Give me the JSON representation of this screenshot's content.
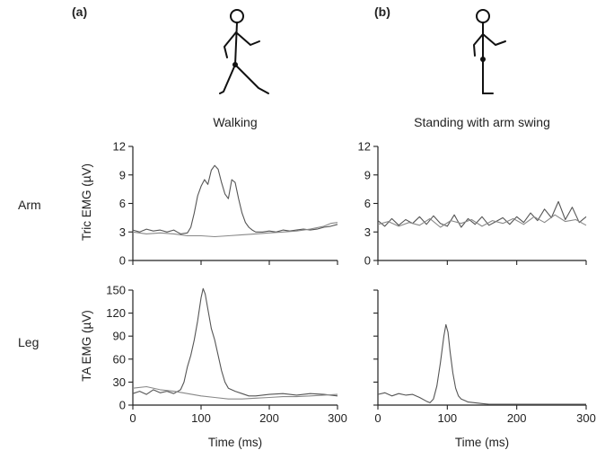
{
  "panels": {
    "a_label": "(a)",
    "b_label": "(b)",
    "a_title": "Walking",
    "b_title": "Standing with arm swing"
  },
  "rows": {
    "arm_label": "Arm",
    "leg_label": "Leg"
  },
  "icons": [
    "walking-figure-icon",
    "standing-figure-icon"
  ],
  "colors": {
    "trace_primary": "#555555",
    "trace_secondary": "#888888",
    "axis": "#222222"
  },
  "chart_data": [
    {
      "id": "walk-arm",
      "type": "line",
      "title": "",
      "xlabel": "",
      "ylabel": "Tric EMG (µV)",
      "xlim": [
        0,
        300
      ],
      "ylim": [
        0,
        12
      ],
      "xticks": [
        0,
        100,
        200,
        300
      ],
      "yticks": [
        0,
        3,
        6,
        9,
        12
      ],
      "show_xtick_labels": false,
      "series": [
        {
          "x": [
            0,
            10,
            20,
            30,
            40,
            50,
            60,
            65,
            70,
            80,
            85,
            90,
            95,
            100,
            105,
            110,
            115,
            120,
            125,
            130,
            135,
            140,
            145,
            150,
            155,
            160,
            165,
            170,
            175,
            180,
            190,
            200,
            210,
            220,
            230,
            240,
            250,
            260,
            270,
            280,
            290,
            300
          ],
          "y": [
            3.2,
            3.0,
            3.3,
            3.1,
            3.2,
            3.0,
            3.2,
            3.0,
            2.8,
            2.9,
            3.5,
            5.0,
            6.8,
            7.8,
            8.5,
            8.0,
            9.5,
            10.0,
            9.6,
            8.2,
            7.0,
            6.5,
            8.5,
            8.2,
            6.5,
            5.0,
            4.0,
            3.5,
            3.2,
            3.0,
            3.0,
            3.1,
            3.0,
            3.2,
            3.1,
            3.2,
            3.3,
            3.2,
            3.3,
            3.5,
            3.6,
            3.8
          ]
        },
        {
          "x": [
            0,
            20,
            40,
            60,
            70,
            80,
            100,
            120,
            140,
            160,
            180,
            200,
            220,
            240,
            260,
            280,
            290,
            300
          ],
          "y": [
            3.0,
            2.8,
            2.9,
            2.8,
            2.7,
            2.6,
            2.6,
            2.5,
            2.6,
            2.7,
            2.8,
            2.9,
            3.0,
            3.1,
            3.3,
            3.6,
            3.9,
            4.0
          ]
        }
      ]
    },
    {
      "id": "walk-leg",
      "type": "line",
      "title": "",
      "xlabel": "Time (ms)",
      "ylabel": "TA EMG (µV)",
      "xlim": [
        0,
        300
      ],
      "ylim": [
        0,
        150
      ],
      "xticks": [
        0,
        100,
        200,
        300
      ],
      "yticks": [
        0,
        30,
        60,
        90,
        120,
        150
      ],
      "show_xtick_labels": true,
      "series": [
        {
          "x": [
            0,
            10,
            20,
            30,
            40,
            50,
            60,
            70,
            75,
            80,
            85,
            90,
            95,
            100,
            103,
            106,
            110,
            115,
            120,
            125,
            130,
            135,
            140,
            150,
            160,
            170,
            180,
            200,
            220,
            240,
            260,
            280,
            300
          ],
          "y": [
            15,
            18,
            14,
            20,
            16,
            18,
            15,
            20,
            30,
            50,
            65,
            85,
            110,
            140,
            152,
            145,
            125,
            100,
            85,
            65,
            45,
            30,
            22,
            18,
            15,
            12,
            12,
            14,
            15,
            13,
            15,
            14,
            12
          ]
        },
        {
          "x": [
            0,
            20,
            40,
            60,
            80,
            100,
            120,
            140,
            160,
            180,
            200,
            220,
            240,
            260,
            280,
            300
          ],
          "y": [
            22,
            24,
            20,
            18,
            15,
            12,
            10,
            8,
            8,
            9,
            10,
            11,
            11,
            12,
            13,
            14
          ]
        }
      ]
    },
    {
      "id": "stand-arm",
      "type": "line",
      "title": "",
      "xlabel": "",
      "ylabel": "",
      "xlim": [
        0,
        300
      ],
      "ylim": [
        0,
        12
      ],
      "xticks": [
        0,
        100,
        200,
        300
      ],
      "yticks": [
        0,
        3,
        6,
        9,
        12
      ],
      "show_xtick_labels": false,
      "series": [
        {
          "x": [
            0,
            10,
            20,
            30,
            40,
            50,
            60,
            70,
            80,
            90,
            100,
            110,
            120,
            130,
            140,
            150,
            160,
            170,
            180,
            190,
            200,
            210,
            220,
            230,
            240,
            250,
            260,
            270,
            280,
            290,
            300
          ],
          "y": [
            4.2,
            3.6,
            4.4,
            3.7,
            4.3,
            3.9,
            4.6,
            3.8,
            4.7,
            3.9,
            3.6,
            4.8,
            3.5,
            4.4,
            3.8,
            4.6,
            3.7,
            4.1,
            4.5,
            3.8,
            4.6,
            4.0,
            5.0,
            4.2,
            5.4,
            4.5,
            6.2,
            4.3,
            5.6,
            4.0,
            4.6
          ]
        },
        {
          "x": [
            0,
            15,
            30,
            45,
            60,
            75,
            90,
            105,
            120,
            135,
            150,
            165,
            180,
            195,
            210,
            225,
            240,
            255,
            270,
            285,
            300
          ],
          "y": [
            3.8,
            4.1,
            3.6,
            4.0,
            3.7,
            4.4,
            3.5,
            4.2,
            3.9,
            4.3,
            3.6,
            4.2,
            3.9,
            4.4,
            3.8,
            4.6,
            4.0,
            4.8,
            4.1,
            4.3,
            3.7
          ]
        }
      ]
    },
    {
      "id": "stand-leg",
      "type": "line",
      "title": "",
      "xlabel": "Time (ms)",
      "ylabel": "",
      "xlim": [
        0,
        300
      ],
      "ylim": [
        0,
        150
      ],
      "xticks": [
        0,
        100,
        200,
        300
      ],
      "yticks": [
        0,
        30,
        60,
        90,
        120,
        150
      ],
      "show_ytick_labels": false,
      "show_xtick_labels": true,
      "series": [
        {
          "x": [
            0,
            10,
            20,
            30,
            40,
            50,
            60,
            70,
            75,
            80,
            85,
            90,
            95,
            98,
            101,
            104,
            108,
            112,
            116,
            120,
            125,
            130,
            140,
            150,
            160,
            180,
            200,
            250,
            300
          ],
          "y": [
            14,
            16,
            12,
            15,
            13,
            14,
            10,
            5,
            3,
            8,
            25,
            55,
            90,
            105,
            95,
            70,
            42,
            22,
            12,
            8,
            6,
            4,
            3,
            2,
            1,
            1,
            1,
            1,
            1
          ]
        }
      ]
    }
  ]
}
